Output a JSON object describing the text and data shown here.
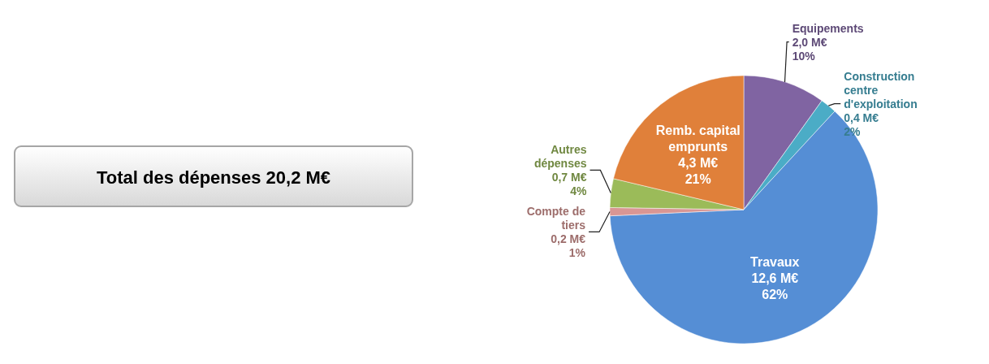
{
  "chart_data": {
    "type": "pie",
    "categories": [
      "Equipements",
      "Construction centre d'exploitation",
      "Travaux",
      "Compte de tiers",
      "Autres dépenses",
      "Remb. capital emprunts"
    ],
    "values": [
      2.0,
      0.4,
      12.6,
      0.2,
      0.7,
      4.3
    ],
    "value_labels": [
      "2,0  M€\n10%",
      "0,4  M€\n2%",
      "12,6  M€\n62%",
      "0,2  M€\n1%",
      "0,7  M€\n4%",
      "4,3  M€\n21%"
    ],
    "colors": [
      "#8064a2",
      "#4bacc6",
      "#558ed5",
      "#d99694",
      "#9bbb59",
      "#e0803a"
    ],
    "annotations": [
      "Total des dépenses 20,2 M€"
    ]
  }
}
